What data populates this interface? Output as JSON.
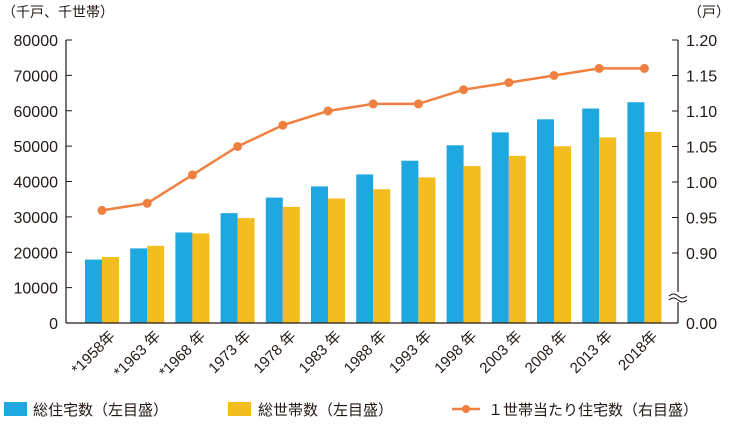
{
  "chart_data": {
    "type": "bar+line",
    "left_unit": "（千戸、千世帯）",
    "right_unit": "（戸）",
    "categories": [
      "*1958年",
      "*1963 年",
      "*1968 年",
      "1973 年",
      "1978 年",
      "1983 年",
      "1988 年",
      "1993 年",
      "1998 年",
      "2003 年",
      "2008 年",
      "2013 年",
      "2018年"
    ],
    "left_axis": {
      "ylim": [
        0,
        80000
      ],
      "ticks": [
        "0",
        "10000",
        "20000",
        "30000",
        "40000",
        "50000",
        "60000",
        "70000",
        "80000"
      ]
    },
    "right_axis": {
      "ylim": [
        0.9,
        1.2
      ],
      "broken": true,
      "ticks": [
        "0.00",
        "0.90",
        "0.95",
        "1.00",
        "1.05",
        "1.10",
        "1.15",
        "1.20"
      ]
    },
    "series": [
      {
        "name": "総住宅数（左目盛）",
        "type": "bar",
        "axis": "left",
        "color": "#1fa8e0",
        "values": [
          17934,
          21090,
          25591,
          31059,
          35451,
          38607,
          42007,
          45879,
          50246,
          53891,
          57586,
          60629,
          62407
        ]
      },
      {
        "name": "総世帯数（左目盛）",
        "type": "bar",
        "axis": "left",
        "color": "#f3bd1f",
        "values": [
          18647,
          21821,
          25320,
          29651,
          32835,
          35197,
          37812,
          41159,
          44360,
          47255,
          49973,
          52453,
          54001
        ]
      },
      {
        "name": "１世帯当たり住宅数（右目盛）",
        "type": "line",
        "axis": "right",
        "color": "#ef8040",
        "values": [
          0.96,
          0.97,
          1.01,
          1.05,
          1.08,
          1.1,
          1.11,
          1.11,
          1.13,
          1.14,
          1.15,
          1.16,
          1.16
        ]
      }
    ],
    "grid": false,
    "legend": "bottom"
  }
}
